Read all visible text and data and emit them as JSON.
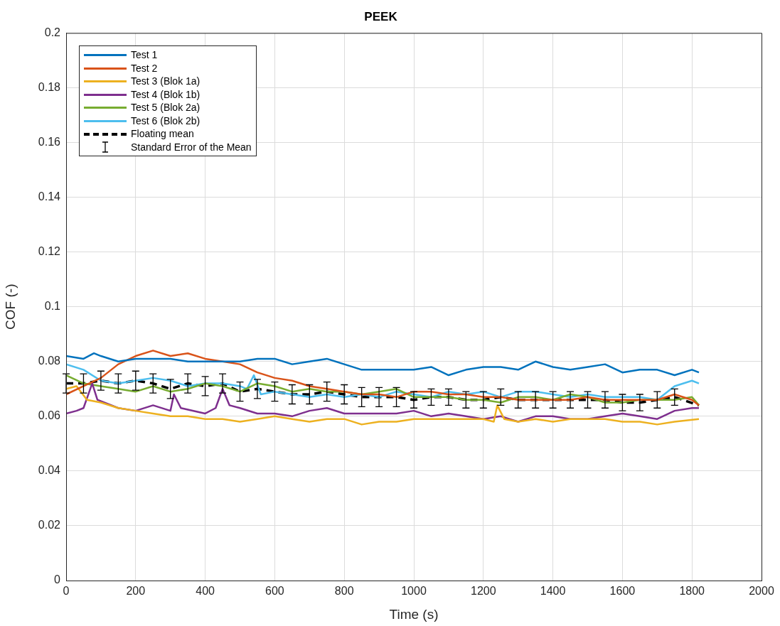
{
  "chart_data": {
    "type": "line",
    "title": "PEEK",
    "xlabel": "Time (s)",
    "ylabel": "COF (-)",
    "xlim": [
      0,
      2000
    ],
    "xticks": [
      0,
      200,
      400,
      600,
      800,
      1000,
      1200,
      1400,
      1600,
      1800,
      2000
    ],
    "ylim": [
      0,
      0.2
    ],
    "yticks": [
      0,
      0.02,
      0.04,
      0.06,
      0.08,
      0.1,
      0.12,
      0.14,
      0.16,
      0.18,
      0.2
    ],
    "grid": true,
    "legend": "top left",
    "line_style": "solid",
    "marker": "none",
    "annotations": [
      "Standard Error of the Mean"
    ],
    "series": [
      {
        "name": "Test 1",
        "color": "#0072bd",
        "x": [
          0,
          50,
          80,
          100,
          150,
          200,
          250,
          300,
          350,
          400,
          450,
          500,
          550,
          600,
          650,
          700,
          750,
          800,
          850,
          900,
          950,
          1000,
          1050,
          1100,
          1150,
          1200,
          1250,
          1300,
          1350,
          1400,
          1450,
          1500,
          1550,
          1600,
          1650,
          1700,
          1750,
          1800,
          1820
        ],
        "values": [
          0.082,
          0.081,
          0.083,
          0.082,
          0.08,
          0.081,
          0.081,
          0.081,
          0.08,
          0.08,
          0.08,
          0.08,
          0.081,
          0.081,
          0.079,
          0.08,
          0.081,
          0.079,
          0.077,
          0.077,
          0.077,
          0.077,
          0.078,
          0.075,
          0.077,
          0.078,
          0.078,
          0.077,
          0.08,
          0.078,
          0.077,
          0.078,
          0.079,
          0.076,
          0.077,
          0.077,
          0.075,
          0.077,
          0.076
        ]
      },
      {
        "name": "Test 2",
        "color": "#d95319",
        "x": [
          0,
          50,
          100,
          150,
          200,
          250,
          300,
          350,
          400,
          450,
          500,
          550,
          600,
          650,
          700,
          750,
          800,
          850,
          900,
          950,
          1000,
          1050,
          1100,
          1150,
          1200,
          1250,
          1300,
          1350,
          1400,
          1450,
          1500,
          1550,
          1600,
          1650,
          1700,
          1750,
          1800,
          1820
        ],
        "values": [
          0.068,
          0.071,
          0.074,
          0.079,
          0.082,
          0.084,
          0.082,
          0.083,
          0.081,
          0.08,
          0.079,
          0.076,
          0.074,
          0.073,
          0.071,
          0.07,
          0.069,
          0.068,
          0.068,
          0.067,
          0.069,
          0.069,
          0.068,
          0.068,
          0.067,
          0.067,
          0.066,
          0.066,
          0.066,
          0.066,
          0.067,
          0.066,
          0.066,
          0.066,
          0.066,
          0.068,
          0.066,
          0.064
        ]
      },
      {
        "name": "Test 3 (Blok 1a)",
        "color": "#edb120",
        "x": [
          0,
          30,
          60,
          100,
          150,
          200,
          250,
          300,
          350,
          400,
          450,
          500,
          550,
          600,
          650,
          700,
          750,
          800,
          850,
          900,
          950,
          1000,
          1050,
          1100,
          1150,
          1200,
          1230,
          1240,
          1260,
          1300,
          1350,
          1400,
          1450,
          1500,
          1550,
          1600,
          1650,
          1700,
          1750,
          1820
        ],
        "values": [
          0.07,
          0.071,
          0.066,
          0.065,
          0.063,
          0.062,
          0.061,
          0.06,
          0.06,
          0.059,
          0.059,
          0.058,
          0.059,
          0.06,
          0.059,
          0.058,
          0.059,
          0.059,
          0.057,
          0.058,
          0.058,
          0.059,
          0.059,
          0.059,
          0.059,
          0.059,
          0.058,
          0.064,
          0.059,
          0.058,
          0.059,
          0.058,
          0.059,
          0.059,
          0.059,
          0.058,
          0.058,
          0.057,
          0.058,
          0.059
        ]
      },
      {
        "name": "Test 4 (Blok 1b)",
        "color": "#7e2f8e",
        "x": [
          0,
          30,
          50,
          75,
          90,
          150,
          200,
          250,
          300,
          310,
          330,
          400,
          430,
          450,
          470,
          500,
          550,
          600,
          650,
          700,
          750,
          800,
          850,
          900,
          950,
          1000,
          1050,
          1100,
          1150,
          1200,
          1250,
          1300,
          1350,
          1400,
          1450,
          1500,
          1550,
          1600,
          1650,
          1700,
          1750,
          1800,
          1820
        ],
        "values": [
          0.061,
          0.062,
          0.063,
          0.072,
          0.066,
          0.063,
          0.062,
          0.064,
          0.062,
          0.068,
          0.063,
          0.061,
          0.063,
          0.07,
          0.064,
          0.063,
          0.061,
          0.061,
          0.06,
          0.062,
          0.063,
          0.061,
          0.061,
          0.061,
          0.061,
          0.062,
          0.06,
          0.061,
          0.06,
          0.059,
          0.06,
          0.058,
          0.06,
          0.06,
          0.059,
          0.059,
          0.06,
          0.061,
          0.06,
          0.059,
          0.062,
          0.063,
          0.063
        ]
      },
      {
        "name": "Test 5 (Blok 2a)",
        "color": "#77ac30",
        "x": [
          0,
          50,
          100,
          150,
          200,
          250,
          300,
          350,
          400,
          450,
          500,
          550,
          600,
          650,
          700,
          750,
          800,
          850,
          900,
          950,
          1000,
          1050,
          1100,
          1150,
          1200,
          1250,
          1300,
          1350,
          1400,
          1450,
          1500,
          1550,
          1600,
          1650,
          1700,
          1750,
          1800,
          1820
        ],
        "values": [
          0.075,
          0.072,
          0.071,
          0.07,
          0.069,
          0.071,
          0.069,
          0.07,
          0.072,
          0.071,
          0.069,
          0.072,
          0.071,
          0.069,
          0.07,
          0.069,
          0.069,
          0.068,
          0.069,
          0.07,
          0.067,
          0.067,
          0.067,
          0.066,
          0.066,
          0.065,
          0.067,
          0.067,
          0.066,
          0.068,
          0.067,
          0.065,
          0.065,
          0.066,
          0.066,
          0.066,
          0.067,
          0.064
        ]
      },
      {
        "name": "Test 6 (Blok 2b)",
        "color": "#4dbeee",
        "x": [
          0,
          50,
          100,
          150,
          200,
          250,
          300,
          350,
          400,
          450,
          500,
          520,
          540,
          560,
          600,
          650,
          700,
          750,
          800,
          850,
          900,
          950,
          1000,
          1050,
          1100,
          1150,
          1200,
          1250,
          1300,
          1350,
          1400,
          1450,
          1500,
          1550,
          1600,
          1650,
          1700,
          1750,
          1800,
          1820
        ],
        "values": [
          0.079,
          0.077,
          0.073,
          0.072,
          0.073,
          0.074,
          0.073,
          0.071,
          0.072,
          0.072,
          0.071,
          0.07,
          0.075,
          0.068,
          0.069,
          0.068,
          0.067,
          0.068,
          0.067,
          0.068,
          0.067,
          0.069,
          0.068,
          0.067,
          0.069,
          0.068,
          0.069,
          0.067,
          0.069,
          0.069,
          0.068,
          0.067,
          0.068,
          0.067,
          0.067,
          0.067,
          0.066,
          0.071,
          0.073,
          0.072
        ]
      },
      {
        "name": "Floating mean",
        "color": "#000000",
        "line_style": "dashed",
        "x": [
          0,
          50,
          100,
          150,
          200,
          250,
          300,
          350,
          400,
          450,
          500,
          550,
          600,
          650,
          700,
          750,
          800,
          850,
          900,
          950,
          1000,
          1050,
          1100,
          1150,
          1200,
          1250,
          1300,
          1350,
          1400,
          1450,
          1500,
          1550,
          1600,
          1650,
          1700,
          1750,
          1820
        ],
        "values": [
          0.072,
          0.072,
          0.073,
          0.072,
          0.073,
          0.072,
          0.07,
          0.072,
          0.071,
          0.072,
          0.069,
          0.07,
          0.069,
          0.068,
          0.068,
          0.069,
          0.068,
          0.067,
          0.067,
          0.067,
          0.066,
          0.067,
          0.067,
          0.066,
          0.066,
          0.067,
          0.066,
          0.066,
          0.066,
          0.066,
          0.066,
          0.066,
          0.065,
          0.065,
          0.066,
          0.067,
          0.064
        ],
        "errors": [
          0.0035,
          0.0035,
          0.0035,
          0.0035,
          0.0035,
          0.0035,
          0.0035,
          0.0035,
          0.0035,
          0.0035,
          0.0035,
          0.0035,
          0.0035,
          0.0035,
          0.0035,
          0.0035,
          0.0035,
          0.0035,
          0.0035,
          0.0035,
          0.003,
          0.003,
          0.003,
          0.003,
          0.003,
          0.003,
          0.003,
          0.003,
          0.003,
          0.003,
          0.003,
          0.003,
          0.003,
          0.003,
          0.003,
          0.003,
          null
        ]
      }
    ]
  }
}
